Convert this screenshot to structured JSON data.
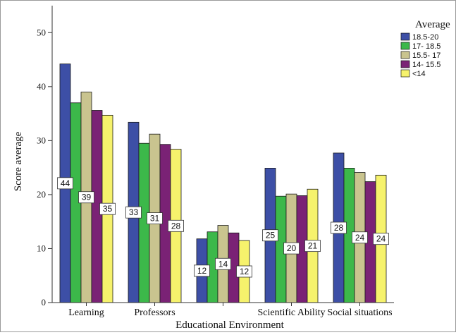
{
  "chart_data": {
    "type": "bar",
    "title": "",
    "xlabel": "Educational Environment",
    "ylabel": "Score average",
    "ylim": [
      0,
      55
    ],
    "yticks": [
      0,
      10,
      20,
      30,
      40,
      50
    ],
    "categories": [
      "Learning",
      "Professors",
      "",
      "Scientific Ability",
      "Social situations"
    ],
    "legend_title": "Average",
    "legend_position": "right",
    "grid": false,
    "series": [
      {
        "name": "18.5-20",
        "color": "#3d4fa6",
        "values": [
          44.2,
          33.4,
          11.8,
          24.9,
          27.7
        ]
      },
      {
        "name": "17- 18.5",
        "color": "#3cb84a",
        "values": [
          37.0,
          29.5,
          13.1,
          19.7,
          24.9
        ]
      },
      {
        "name": "15.5- 17",
        "color": "#c9c48f",
        "values": [
          39.0,
          31.2,
          14.3,
          20.1,
          24.1
        ]
      },
      {
        "name": "14- 15.5",
        "color": "#7a2275",
        "values": [
          35.6,
          29.3,
          12.9,
          19.8,
          22.4
        ]
      },
      {
        "name": "<14",
        "color": "#f6f26c",
        "values": [
          34.7,
          28.4,
          11.5,
          21.0,
          23.6
        ]
      }
    ],
    "data_labels": [
      {
        "category": 0,
        "series": 0,
        "text": "44"
      },
      {
        "category": 0,
        "series": 2,
        "text": "39"
      },
      {
        "category": 0,
        "series": 4,
        "text": "35"
      },
      {
        "category": 1,
        "series": 0,
        "text": "33"
      },
      {
        "category": 1,
        "series": 2,
        "text": "31"
      },
      {
        "category": 1,
        "series": 4,
        "text": "28"
      },
      {
        "category": 2,
        "series": 0,
        "text": "12"
      },
      {
        "category": 2,
        "series": 2,
        "text": "14"
      },
      {
        "category": 2,
        "series": 4,
        "text": "12"
      },
      {
        "category": 3,
        "series": 0,
        "text": "25"
      },
      {
        "category": 3,
        "series": 2,
        "text": "20"
      },
      {
        "category": 3,
        "series": 4,
        "text": "21"
      },
      {
        "category": 4,
        "series": 0,
        "text": "28"
      },
      {
        "category": 4,
        "series": 2,
        "text": "24"
      },
      {
        "category": 4,
        "series": 4,
        "text": "24"
      }
    ]
  }
}
